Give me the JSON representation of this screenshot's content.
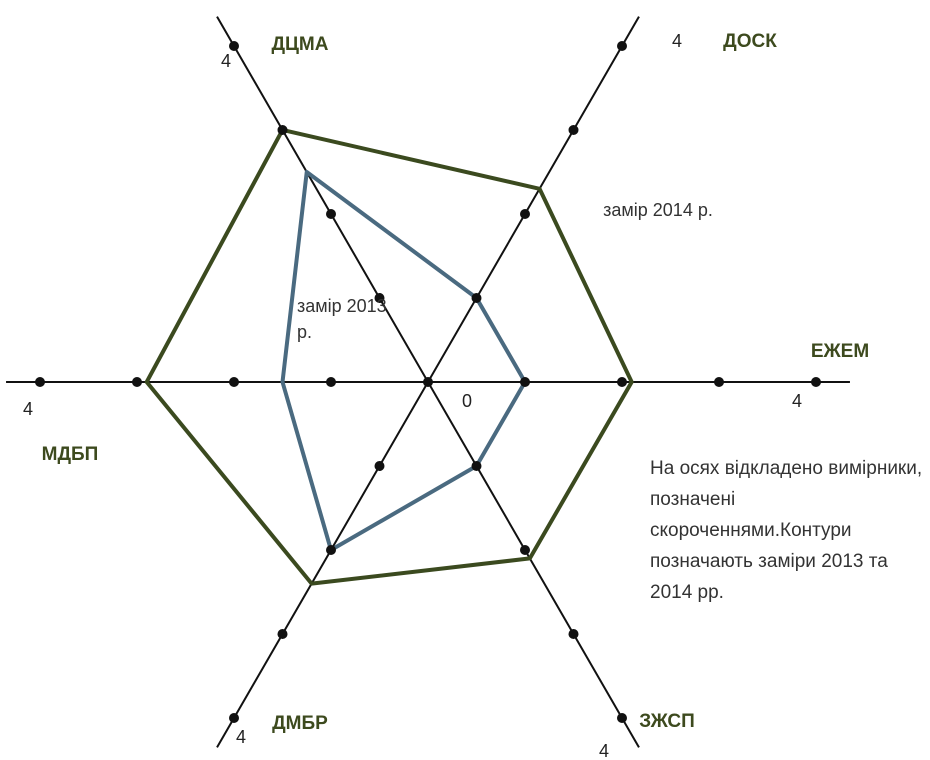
{
  "chart_data": {
    "type": "radar",
    "categories": [
      "ДЦМА",
      "ДОСК",
      "ЕЖЕМ",
      "ЗЖСП",
      "ДМБР",
      "МДБП"
    ],
    "rlim": [
      0,
      4
    ],
    "rticks": [
      1,
      2,
      3,
      4
    ],
    "series": [
      {
        "name": "замір 2013 р.",
        "color": "#4a6a80",
        "values": [
          2.5,
          1,
          1,
          1,
          2,
          1.5
        ]
      },
      {
        "name": "замір 2014 р.",
        "color": "#3b4a1f",
        "values": [
          3,
          2.3,
          2.1,
          2.1,
          2.4,
          2.9
        ]
      }
    ],
    "note": "На осях відкладено вимірники, позначені скороченнями.Контури позначають заміри 2013 та 2014 рр."
  }
}
